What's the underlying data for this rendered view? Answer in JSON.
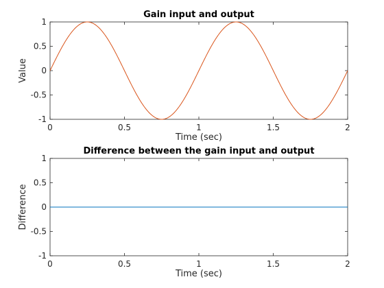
{
  "chart_data": [
    {
      "type": "line",
      "title": "Gain input and output",
      "xlabel": "Time (sec)",
      "ylabel": "Value",
      "xlim": [
        0,
        2
      ],
      "ylim": [
        -1,
        1
      ],
      "xticks": [
        "0",
        "0.5",
        "1",
        "1.5",
        "2"
      ],
      "yticks": [
        "1",
        "0.5",
        "0",
        "-0.5",
        "-1"
      ],
      "grid": false,
      "series": [
        {
          "function": "sin(2*pi*t)",
          "x": [
            0,
            0.125,
            0.25,
            0.375,
            0.5,
            0.625,
            0.75,
            0.875,
            1.0,
            1.125,
            1.25,
            1.375,
            1.5,
            1.625,
            1.75,
            1.875,
            2.0
          ],
          "y": [
            0,
            0.707,
            1,
            0.707,
            0,
            -0.707,
            -1,
            -0.707,
            0,
            0.707,
            1,
            0.707,
            0,
            -0.707,
            -1,
            -0.707,
            0
          ],
          "color": "#d95319"
        }
      ]
    },
    {
      "type": "line",
      "title": "Difference between the gain input and output",
      "xlabel": "Time (sec)",
      "ylabel": "Difference",
      "xlim": [
        0,
        2
      ],
      "ylim": [
        -1,
        1
      ],
      "xticks": [
        "0",
        "0.5",
        "1",
        "1.5",
        "2"
      ],
      "yticks": [
        "1",
        "0.5",
        "0",
        "-0.5",
        "-1"
      ],
      "grid": false,
      "series": [
        {
          "x": [
            0,
            2
          ],
          "y": [
            0,
            0
          ],
          "color": "#0072bd"
        }
      ]
    }
  ]
}
